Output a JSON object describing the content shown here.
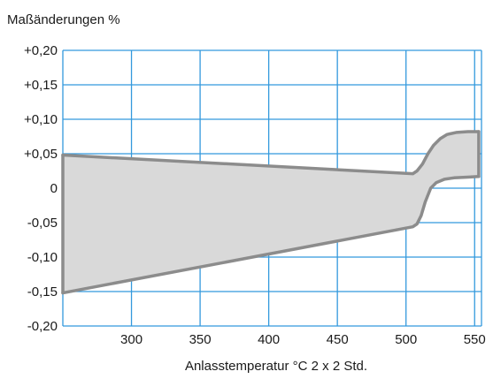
{
  "chart_data": {
    "type": "area",
    "title": "Maßänderungen %",
    "xlabel": "Anlasstemperatur °C  2 x 2 Std.",
    "ylabel": "",
    "xlim": [
      250,
      555
    ],
    "ylim": [
      -0.2,
      0.2
    ],
    "x_ticks": [
      300,
      350,
      400,
      450,
      500,
      550
    ],
    "x_tick_labels": [
      "300",
      "350",
      "400",
      "450",
      "500",
      "550"
    ],
    "y_ticks": [
      0.2,
      0.15,
      0.1,
      0.05,
      0,
      -0.05,
      -0.1,
      -0.15,
      -0.2
    ],
    "y_tick_labels": [
      "+0,20",
      "+0,15",
      "+0,10",
      "+0,05",
      "0",
      "-0,05",
      "-0,10",
      "-0,15",
      "-0,20"
    ],
    "x_grid": [
      300,
      350,
      400,
      450,
      500,
      550
    ],
    "grid": true,
    "band": {
      "upper": {
        "x": [
          250,
          505,
          508,
          512,
          516,
          520,
          525,
          530,
          537,
          545,
          553
        ],
        "y": [
          0.048,
          0.021,
          0.025,
          0.035,
          0.05,
          0.062,
          0.072,
          0.078,
          0.081,
          0.082,
          0.082
        ]
      },
      "lower": {
        "x": [
          250,
          505,
          508,
          511,
          514,
          518,
          522,
          528,
          535,
          545,
          553
        ],
        "y": [
          -0.152,
          -0.056,
          -0.052,
          -0.04,
          -0.02,
          0.0,
          0.008,
          0.013,
          0.015,
          0.016,
          0.017
        ]
      }
    },
    "colors": {
      "grid": "#3399dd",
      "band_fill": "#d9d9d9",
      "band_edge": "#8c8c8c"
    }
  }
}
